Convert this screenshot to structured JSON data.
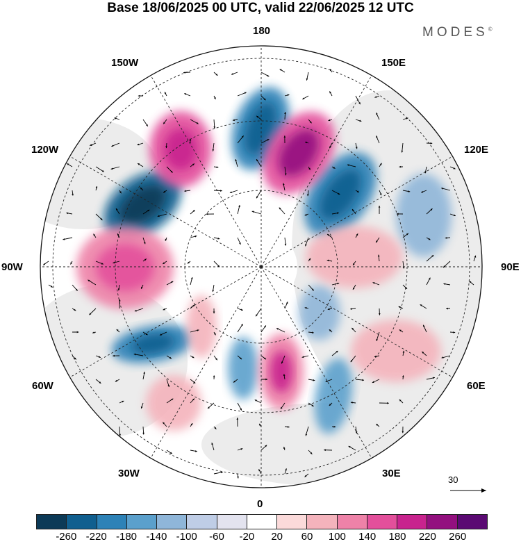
{
  "title": "Base 18/06/2025 00 UTC, valid 22/06/2025 12 UTC",
  "brand": "MODES",
  "brand_mark": "©",
  "longitude_labels": {
    "top": "180",
    "bottom": "0",
    "left": "90W",
    "right": "90E",
    "upper_left_1": "150W",
    "upper_left_2": "120W",
    "upper_right_1": "150E",
    "upper_right_2": "120E",
    "lower_left_1": "60W",
    "lower_left_2": "30W",
    "lower_right_1": "60E",
    "lower_right_2": "30E"
  },
  "reference_vector": "30",
  "colorbar": {
    "colors": [
      "#0c3a57",
      "#105f8f",
      "#2d82b7",
      "#5ba0cc",
      "#8fb6d9",
      "#bfcde6",
      "#e3e3ef",
      "#ffffff",
      "#fbdada",
      "#f4b3bc",
      "#ee82a8",
      "#e34f9b",
      "#c8238e",
      "#93107f",
      "#5b0a73"
    ],
    "labels": [
      "-260",
      "-220",
      "-180",
      "-140",
      "-100",
      "-60",
      "-20",
      "20",
      "60",
      "100",
      "140",
      "180",
      "220",
      "260"
    ]
  }
}
